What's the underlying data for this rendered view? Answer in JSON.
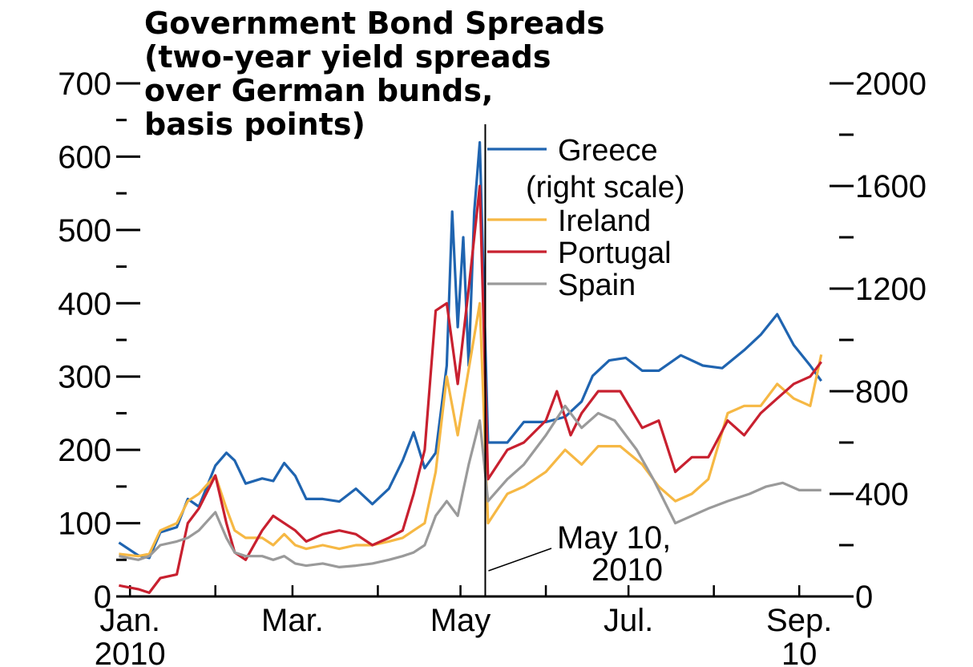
{
  "chart_data": {
    "type": "line",
    "title_lines": [
      "Government Bond Spreads",
      "(two-year yield spreads",
      "over German bunds,",
      "basis points)"
    ],
    "x_axis": {
      "range": [
        "2009-12-27",
        "2010-09-12"
      ],
      "tick_labels": [
        {
          "date": "2010-01-01",
          "line1": "Jan.",
          "line2": "2010"
        },
        {
          "date": "2010-03-01",
          "line1": "Mar.",
          "line2": ""
        },
        {
          "date": "2010-05-01",
          "line1": "May",
          "line2": ""
        },
        {
          "date": "2010-07-01",
          "line1": "Jul.",
          "line2": ""
        },
        {
          "date": "2010-09-01",
          "line1": "Sep.",
          "line2": "10"
        }
      ]
    },
    "y_left": {
      "range": [
        0,
        700
      ],
      "ticks": [
        "0",
        "100",
        "200",
        "300",
        "400",
        "500",
        "600",
        "700"
      ]
    },
    "y_right": {
      "range": [
        0,
        2000
      ],
      "ticks": [
        "0",
        "400",
        "800",
        "1200",
        "1600",
        "2000"
      ]
    },
    "legend": [
      {
        "line1": "Greece",
        "line2": "(right scale)",
        "color": "#1f64b0"
      },
      {
        "line1": "Ireland",
        "line2": "",
        "color": "#f6b844"
      },
      {
        "line1": "Portugal",
        "line2": "",
        "color": "#c8202f"
      },
      {
        "line1": "Spain",
        "line2": "",
        "color": "#9a9a9a"
      }
    ],
    "annotation": {
      "date": "2010-05-10",
      "line1": "May 10,",
      "line2": "2010"
    },
    "series": [
      {
        "name": "Greece (right scale)",
        "axis": "right",
        "color": "#1f64b0",
        "points": [
          [
            "2009-12-28",
            210
          ],
          [
            "2010-01-04",
            160
          ],
          [
            "2010-01-08",
            150
          ],
          [
            "2010-01-12",
            250
          ],
          [
            "2010-01-18",
            270
          ],
          [
            "2010-01-22",
            380
          ],
          [
            "2010-01-26",
            350
          ],
          [
            "2010-02-01",
            510
          ],
          [
            "2010-02-05",
            560
          ],
          [
            "2010-02-08",
            530
          ],
          [
            "2010-02-12",
            440
          ],
          [
            "2010-02-18",
            460
          ],
          [
            "2010-02-22",
            450
          ],
          [
            "2010-02-26",
            520
          ],
          [
            "2010-03-02",
            470
          ],
          [
            "2010-03-06",
            380
          ],
          [
            "2010-03-12",
            380
          ],
          [
            "2010-03-18",
            370
          ],
          [
            "2010-03-24",
            420
          ],
          [
            "2010-03-30",
            360
          ],
          [
            "2010-04-05",
            420
          ],
          [
            "2010-04-10",
            530
          ],
          [
            "2010-04-14",
            640
          ],
          [
            "2010-04-18",
            500
          ],
          [
            "2010-04-22",
            560
          ],
          [
            "2010-04-26",
            900
          ],
          [
            "2010-04-28",
            1500
          ],
          [
            "2010-04-30",
            1050
          ],
          [
            "2010-05-02",
            1400
          ],
          [
            "2010-05-04",
            900
          ],
          [
            "2010-05-06",
            1500
          ],
          [
            "2010-05-08",
            1770
          ],
          [
            "2010-05-11",
            600
          ],
          [
            "2010-05-18",
            600
          ],
          [
            "2010-05-24",
            680
          ],
          [
            "2010-06-01",
            680
          ],
          [
            "2010-06-08",
            700
          ],
          [
            "2010-06-14",
            760
          ],
          [
            "2010-06-18",
            860
          ],
          [
            "2010-06-24",
            920
          ],
          [
            "2010-06-30",
            930
          ],
          [
            "2010-07-06",
            880
          ],
          [
            "2010-07-12",
            880
          ],
          [
            "2010-07-20",
            940
          ],
          [
            "2010-07-28",
            900
          ],
          [
            "2010-08-04",
            890
          ],
          [
            "2010-08-12",
            960
          ],
          [
            "2010-08-18",
            1020
          ],
          [
            "2010-08-24",
            1100
          ],
          [
            "2010-08-30",
            980
          ],
          [
            "2010-09-05",
            900
          ],
          [
            "2010-09-09",
            840
          ]
        ]
      },
      {
        "name": "Ireland",
        "axis": "left",
        "color": "#f6b844",
        "points": [
          [
            "2009-12-28",
            58
          ],
          [
            "2010-01-04",
            55
          ],
          [
            "2010-01-08",
            58
          ],
          [
            "2010-01-12",
            90
          ],
          [
            "2010-01-18",
            100
          ],
          [
            "2010-01-22",
            130
          ],
          [
            "2010-01-26",
            140
          ],
          [
            "2010-02-01",
            165
          ],
          [
            "2010-02-05",
            120
          ],
          [
            "2010-02-08",
            90
          ],
          [
            "2010-02-12",
            80
          ],
          [
            "2010-02-18",
            80
          ],
          [
            "2010-02-22",
            70
          ],
          [
            "2010-02-26",
            85
          ],
          [
            "2010-03-02",
            70
          ],
          [
            "2010-03-06",
            65
          ],
          [
            "2010-03-12",
            70
          ],
          [
            "2010-03-18",
            65
          ],
          [
            "2010-03-24",
            70
          ],
          [
            "2010-03-30",
            70
          ],
          [
            "2010-04-05",
            75
          ],
          [
            "2010-04-10",
            80
          ],
          [
            "2010-04-14",
            90
          ],
          [
            "2010-04-18",
            100
          ],
          [
            "2010-04-22",
            170
          ],
          [
            "2010-04-26",
            300
          ],
          [
            "2010-04-30",
            220
          ],
          [
            "2010-05-04",
            310
          ],
          [
            "2010-05-08",
            400
          ],
          [
            "2010-05-11",
            100
          ],
          [
            "2010-05-18",
            140
          ],
          [
            "2010-05-24",
            150
          ],
          [
            "2010-06-01",
            170
          ],
          [
            "2010-06-08",
            200
          ],
          [
            "2010-06-14",
            180
          ],
          [
            "2010-06-20",
            205
          ],
          [
            "2010-06-28",
            205
          ],
          [
            "2010-07-06",
            180
          ],
          [
            "2010-07-12",
            150
          ],
          [
            "2010-07-18",
            130
          ],
          [
            "2010-07-24",
            140
          ],
          [
            "2010-07-30",
            160
          ],
          [
            "2010-08-06",
            250
          ],
          [
            "2010-08-12",
            260
          ],
          [
            "2010-08-18",
            260
          ],
          [
            "2010-08-24",
            290
          ],
          [
            "2010-08-30",
            270
          ],
          [
            "2010-09-05",
            260
          ],
          [
            "2010-09-09",
            330
          ]
        ]
      },
      {
        "name": "Portugal",
        "axis": "left",
        "color": "#c8202f",
        "points": [
          [
            "2009-12-28",
            15
          ],
          [
            "2010-01-04",
            10
          ],
          [
            "2010-01-08",
            5
          ],
          [
            "2010-01-12",
            25
          ],
          [
            "2010-01-18",
            30
          ],
          [
            "2010-01-22",
            100
          ],
          [
            "2010-01-26",
            120
          ],
          [
            "2010-02-01",
            165
          ],
          [
            "2010-02-05",
            100
          ],
          [
            "2010-02-08",
            60
          ],
          [
            "2010-02-12",
            50
          ],
          [
            "2010-02-18",
            90
          ],
          [
            "2010-02-22",
            110
          ],
          [
            "2010-02-26",
            100
          ],
          [
            "2010-03-02",
            90
          ],
          [
            "2010-03-06",
            75
          ],
          [
            "2010-03-12",
            85
          ],
          [
            "2010-03-18",
            90
          ],
          [
            "2010-03-24",
            85
          ],
          [
            "2010-03-30",
            70
          ],
          [
            "2010-04-05",
            80
          ],
          [
            "2010-04-10",
            90
          ],
          [
            "2010-04-14",
            140
          ],
          [
            "2010-04-18",
            200
          ],
          [
            "2010-04-22",
            390
          ],
          [
            "2010-04-26",
            400
          ],
          [
            "2010-04-30",
            290
          ],
          [
            "2010-05-04",
            420
          ],
          [
            "2010-05-08",
            560
          ],
          [
            "2010-05-11",
            160
          ],
          [
            "2010-05-18",
            200
          ],
          [
            "2010-05-24",
            210
          ],
          [
            "2010-06-01",
            240
          ],
          [
            "2010-06-05",
            280
          ],
          [
            "2010-06-10",
            220
          ],
          [
            "2010-06-14",
            250
          ],
          [
            "2010-06-20",
            280
          ],
          [
            "2010-06-28",
            280
          ],
          [
            "2010-07-06",
            230
          ],
          [
            "2010-07-12",
            240
          ],
          [
            "2010-07-18",
            170
          ],
          [
            "2010-07-24",
            190
          ],
          [
            "2010-07-30",
            190
          ],
          [
            "2010-08-06",
            240
          ],
          [
            "2010-08-12",
            220
          ],
          [
            "2010-08-18",
            250
          ],
          [
            "2010-08-24",
            270
          ],
          [
            "2010-08-30",
            290
          ],
          [
            "2010-09-05",
            300
          ],
          [
            "2010-09-09",
            320
          ]
        ]
      },
      {
        "name": "Spain",
        "axis": "left",
        "color": "#9a9a9a",
        "points": [
          [
            "2009-12-28",
            55
          ],
          [
            "2010-01-04",
            50
          ],
          [
            "2010-01-08",
            55
          ],
          [
            "2010-01-12",
            70
          ],
          [
            "2010-01-18",
            75
          ],
          [
            "2010-01-22",
            80
          ],
          [
            "2010-01-26",
            90
          ],
          [
            "2010-02-01",
            115
          ],
          [
            "2010-02-05",
            80
          ],
          [
            "2010-02-08",
            60
          ],
          [
            "2010-02-12",
            55
          ],
          [
            "2010-02-18",
            55
          ],
          [
            "2010-02-22",
            50
          ],
          [
            "2010-02-26",
            55
          ],
          [
            "2010-03-02",
            45
          ],
          [
            "2010-03-06",
            42
          ],
          [
            "2010-03-12",
            45
          ],
          [
            "2010-03-18",
            40
          ],
          [
            "2010-03-24",
            42
          ],
          [
            "2010-03-30",
            45
          ],
          [
            "2010-04-05",
            50
          ],
          [
            "2010-04-10",
            55
          ],
          [
            "2010-04-14",
            60
          ],
          [
            "2010-04-18",
            70
          ],
          [
            "2010-04-22",
            110
          ],
          [
            "2010-04-26",
            130
          ],
          [
            "2010-04-30",
            110
          ],
          [
            "2010-05-04",
            180
          ],
          [
            "2010-05-08",
            240
          ],
          [
            "2010-05-11",
            130
          ],
          [
            "2010-05-18",
            160
          ],
          [
            "2010-05-24",
            180
          ],
          [
            "2010-06-01",
            220
          ],
          [
            "2010-06-08",
            260
          ],
          [
            "2010-06-14",
            230
          ],
          [
            "2010-06-20",
            250
          ],
          [
            "2010-06-26",
            240
          ],
          [
            "2010-07-04",
            200
          ],
          [
            "2010-07-10",
            160
          ],
          [
            "2010-07-18",
            100
          ],
          [
            "2010-07-24",
            110
          ],
          [
            "2010-07-30",
            120
          ],
          [
            "2010-08-06",
            130
          ],
          [
            "2010-08-14",
            140
          ],
          [
            "2010-08-20",
            150
          ],
          [
            "2010-08-26",
            155
          ],
          [
            "2010-09-01",
            145
          ],
          [
            "2010-09-09",
            145
          ]
        ]
      }
    ]
  }
}
